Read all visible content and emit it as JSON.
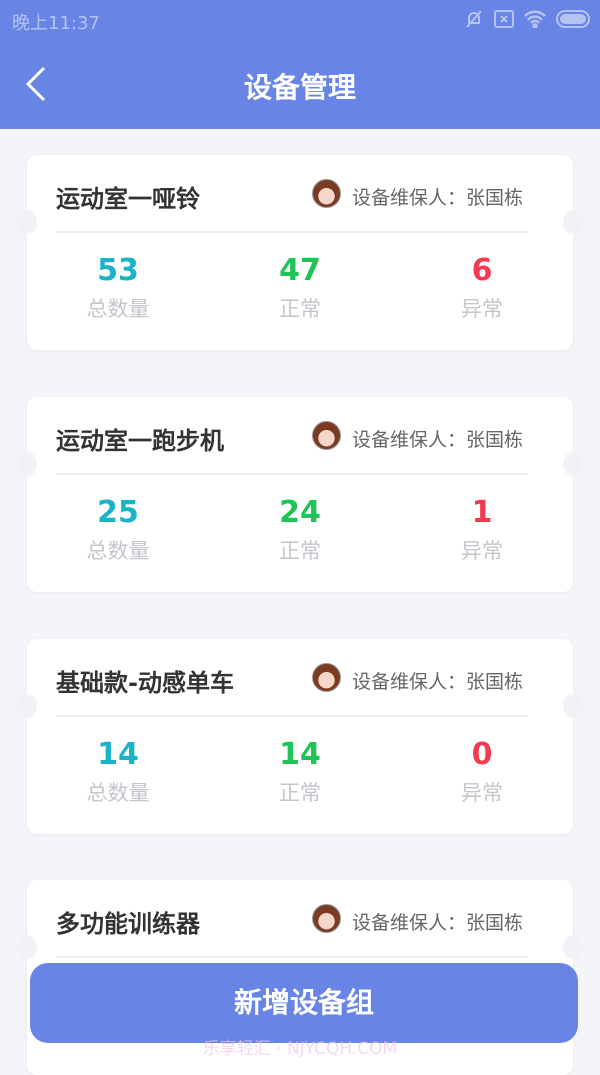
{
  "status_bar": {
    "time": "晚上11:37",
    "icons": [
      "mute-bell-icon",
      "sim-x-icon",
      "wifi-icon",
      "battery-icon"
    ]
  },
  "header": {
    "title": "设备管理",
    "back_icon": "chevron-left-icon"
  },
  "colors": {
    "primary": "#6884e5",
    "total": "#1ab4c8",
    "normal": "#1ec456",
    "abnormal": "#f23a50"
  },
  "groups": [
    {
      "name": "运动室一哑铃",
      "keeper": "设备维保人：张国栋",
      "total": "53",
      "normal": "47",
      "abnormal": "6"
    },
    {
      "name": "运动室一跑步机",
      "keeper": "设备维保人：张国栋",
      "total": "25",
      "normal": "24",
      "abnormal": "1"
    },
    {
      "name": "基础款-动感单车",
      "keeper": "设备维保人：张国栋",
      "total": "14",
      "normal": "14",
      "abnormal": "0"
    },
    {
      "name": "多功能训练器",
      "keeper": "设备维保人：张国栋"
    }
  ],
  "labels": {
    "total": "总数量",
    "normal": "正常",
    "abnormal": "异常"
  },
  "add_button": "新增设备组",
  "watermark": "乐享轻汇 · NJYCQH.COM"
}
